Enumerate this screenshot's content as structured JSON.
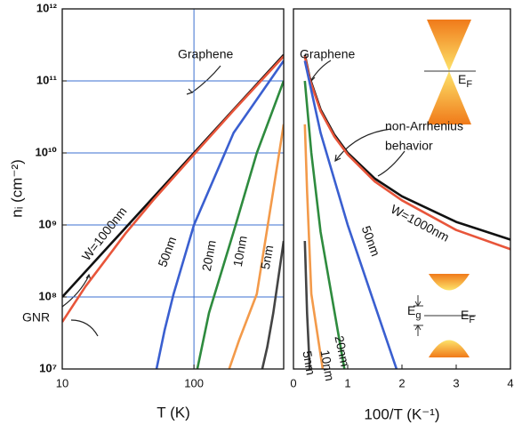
{
  "chart_data": [
    {
      "type": "line",
      "x_label": "T (K)",
      "y_label": "nᵢ (cm⁻²)",
      "xlog": true,
      "ylog": true,
      "grid": true,
      "grid_color": "#3b6fd0",
      "xlim": [
        10,
        480
      ],
      "xticks": [
        10,
        100
      ],
      "ylim": [
        10000000.0,
        1000000000000.0
      ],
      "yticks": [
        {
          "value": 10000000.0,
          "label": "10⁷"
        },
        {
          "value": 100000000.0,
          "label": "10⁸"
        },
        {
          "value": 1000000000.0,
          "label": "10⁹"
        },
        {
          "value": 10000000000.0,
          "label": "10¹⁰"
        },
        {
          "value": 100000000000.0,
          "label": "10¹¹"
        },
        {
          "value": 1000000000000.0,
          "label": "10¹²"
        }
      ],
      "series": [
        {
          "color": "#111111",
          "x": [
            10,
            30,
            100,
            200,
            480
          ],
          "values": [
            100000000.0,
            900000000.0,
            10000000000.0,
            40000000000.0,
            230000000000.0
          ]
        },
        {
          "color": "#e8553a",
          "x": [
            10,
            15,
            20,
            30,
            50,
            100,
            200,
            480
          ],
          "values": [
            45000000.0,
            140000000.0,
            280000000.0,
            750000000.0,
            2300000000.0,
            9500000000.0,
            39000000000.0,
            220000000000.0
          ]
        },
        {
          "color": "#3a5fd0",
          "x": [
            52,
            60,
            70,
            100,
            200,
            480
          ],
          "values": [
            10000000.0,
            35000000.0,
            110000000.0,
            1000000000.0,
            19000000000.0,
            190000000000.0
          ]
        },
        {
          "color": "#2e8b3e",
          "x": [
            106,
            130,
            200,
            300,
            480
          ],
          "values": [
            10000000.0,
            60000000.0,
            800000000.0,
            10000000000.0,
            100000000000.0
          ]
        },
        {
          "color": "#f39a4a",
          "x": [
            185,
            220,
            300,
            400,
            480
          ],
          "values": [
            10000000.0,
            25000000.0,
            110000000.0,
            3000000000.0,
            25000000000.0
          ]
        },
        {
          "color": "#444444",
          "x": [
            330,
            360,
            400,
            480
          ],
          "values": [
            10000000.0,
            20000000.0,
            60000000.0,
            600000000.0
          ]
        }
      ],
      "annotations": [
        "Graphene",
        "GNR",
        "W=1000nm",
        "50nm",
        "20nm",
        "10nm",
        "5nm"
      ]
    },
    {
      "type": "line",
      "x_label": "100/T (K⁻¹)",
      "xlog": false,
      "ylog": true,
      "grid": false,
      "xlim": [
        0,
        4
      ],
      "xticks": [
        0,
        1,
        2,
        3,
        4
      ],
      "ylim": [
        10000000.0,
        1000000000000.0
      ],
      "series": [
        {
          "color": "#111111",
          "x": [
            0.21,
            0.3,
            0.5,
            0.75,
            1,
            1.5,
            2,
            3,
            4
          ],
          "values": [
            230000000000.0,
            110000000000.0,
            40000000000.0,
            18000000000.0,
            10000000000.0,
            4400000000.0,
            2500000000.0,
            1100000000.0,
            625000000.0
          ]
        },
        {
          "color": "#e8553a",
          "x": [
            0.21,
            0.3,
            0.5,
            0.75,
            1,
            1.5,
            2,
            3,
            4
          ],
          "values": [
            220000000000.0,
            105000000000.0,
            38000000000.0,
            17000000000.0,
            9500000000.0,
            4000000000.0,
            2200000000.0,
            850000000.0,
            460000000.0
          ]
        },
        {
          "color": "#3a5fd0",
          "x": [
            0.21,
            0.5,
            1,
            1.43,
            1.9
          ],
          "values": [
            190000000000.0,
            19000000000.0,
            1000000000.0,
            110000000.0,
            10000000.0
          ]
        },
        {
          "color": "#2e8b3e",
          "x": [
            0.21,
            0.33,
            0.5,
            0.94
          ],
          "values": [
            100000000000.0,
            10000000000.0,
            800000000.0,
            10000000.0
          ]
        },
        {
          "color": "#f39a4a",
          "x": [
            0.21,
            0.25,
            0.33,
            0.54
          ],
          "values": [
            25000000000.0,
            3000000000.0,
            110000000.0,
            10000000.0
          ]
        },
        {
          "color": "#444444",
          "x": [
            0.21,
            0.25,
            0.3
          ],
          "values": [
            600000000.0,
            60000000.0,
            10000000.0
          ]
        }
      ],
      "annotations": [
        "Graphene",
        "non-Arrhenius",
        "behavior",
        "W=1000nm",
        "50nm",
        "20nm",
        "10nm",
        "5nm"
      ],
      "band_labels": [
        {
          "main": "E",
          "sub": "F"
        },
        {
          "main": "E",
          "sub": "F"
        },
        {
          "main": "E",
          "sub": "g"
        }
      ]
    }
  ]
}
